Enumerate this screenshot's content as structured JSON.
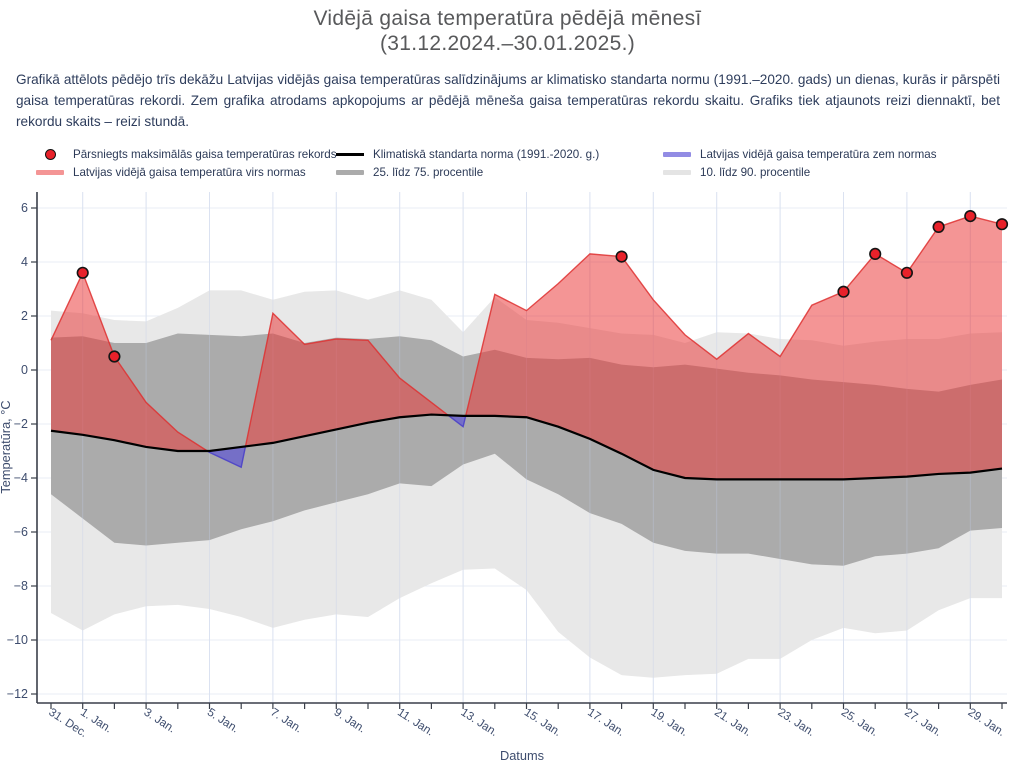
{
  "header": {
    "title_line1": "Vidējā gaisa temperatūra pēdējā mēnesī",
    "title_line2": "(31.12.2024.–30.01.2025.)",
    "description": "Grafikā attēlots pēdējo trīs dekāžu Latvijas vidējās gaisa temperatūras salīdzinājums ar klimatisko standarta normu (1991.–2020. gads) un dienas, kurās ir pārspēti gaisa temperatūras rekordi. Zem grafika atrodams apkopojums ar pēdējā mēneša gaisa temperatūras rekordu skaitu. Grafiks tiek atjaunots reizi diennaktī, bet rekordu skaits – reizi stundā."
  },
  "legend": {
    "items": [
      {
        "label": "Pārsniegts maksimālās gaisa temperatūras rekords",
        "swatch": "dot",
        "color": "#e8212a",
        "border": "#111111"
      },
      {
        "label": "Latvijas vidējā gaisa temperatūra virs normas",
        "swatch": "band",
        "color": "rgba(234,51,51,0.52)"
      },
      {
        "label": "Klimatiskā standarta norma (1991.-2020. g.)",
        "swatch": "line",
        "color": "#000000"
      },
      {
        "label": "25. līdz 75. procentile",
        "swatch": "band",
        "color": "#ababab"
      },
      {
        "label": "Latvijas vidējā gaisa temperatūra zem normas",
        "swatch": "band",
        "color": "rgba(88,78,214,0.65)"
      },
      {
        "label": "10. līdz 90. procentile",
        "swatch": "band",
        "color": "#e4e4e4"
      }
    ]
  },
  "chart_data": {
    "type": "area",
    "xlabel": "Datums",
    "ylabel": "Temperatūra, °C",
    "ylim": [
      -12.35,
      6.6
    ],
    "grid": true,
    "legend_position": "top",
    "categories": [
      "31. Dec.",
      "1. Jan.",
      "2. Jan.",
      "3. Jan.",
      "4. Jan.",
      "5. Jan.",
      "6. Jan.",
      "7. Jan.",
      "8. Jan.",
      "9. Jan.",
      "10. Jan.",
      "11. Jan.",
      "12. Jan.",
      "13. Jan.",
      "14. Jan.",
      "15. Jan.",
      "16. Jan.",
      "17. Jan.",
      "18. Jan.",
      "19. Jan.",
      "20. Jan.",
      "21. Jan.",
      "22. Jan.",
      "23. Jan.",
      "24. Jan.",
      "25. Jan.",
      "26. Jan.",
      "27. Jan.",
      "28. Jan.",
      "29. Jan.",
      "30. Jan."
    ],
    "series": [
      {
        "name": "Latvijas vidējā gaisa temperatūra",
        "values": [
          1.1,
          3.6,
          0.5,
          -1.2,
          -2.3,
          -3.05,
          -3.6,
          2.1,
          0.95,
          1.15,
          1.1,
          -0.3,
          -1.2,
          -2.1,
          2.8,
          2.2,
          3.2,
          4.3,
          4.2,
          2.6,
          1.3,
          0.4,
          1.35,
          0.5,
          2.4,
          2.9,
          4.3,
          3.6,
          5.3,
          5.7,
          5.4
        ]
      },
      {
        "name": "Klimatiskā standarta norma (1991.-2020. g.)",
        "values": [
          -2.25,
          -2.4,
          -2.6,
          -2.85,
          -3.0,
          -3.0,
          -2.85,
          -2.7,
          -2.45,
          -2.2,
          -1.95,
          -1.75,
          -1.65,
          -1.7,
          -1.7,
          -1.75,
          -2.1,
          -2.55,
          -3.1,
          -3.7,
          -4.0,
          -4.05,
          -4.05,
          -4.05,
          -4.05,
          -4.05,
          -4.0,
          -3.95,
          -3.85,
          -3.8,
          -3.65
        ]
      },
      {
        "name": "75. procentile",
        "values": [
          1.2,
          1.25,
          1.0,
          1.0,
          1.35,
          1.3,
          1.25,
          1.35,
          1.0,
          1.2,
          1.15,
          1.25,
          1.1,
          0.5,
          0.75,
          0.45,
          0.4,
          0.45,
          0.2,
          0.1,
          0.2,
          0.05,
          -0.1,
          -0.2,
          -0.35,
          -0.45,
          -0.55,
          -0.7,
          -0.8,
          -0.55,
          -0.35
        ]
      },
      {
        "name": "25. procentile",
        "values": [
          -4.6,
          -5.5,
          -6.4,
          -6.5,
          -6.4,
          -6.3,
          -5.9,
          -5.6,
          -5.2,
          -4.9,
          -4.6,
          -4.2,
          -4.3,
          -3.5,
          -3.1,
          -4.05,
          -4.6,
          -5.3,
          -5.7,
          -6.4,
          -6.7,
          -6.8,
          -6.8,
          -7.0,
          -7.2,
          -7.25,
          -6.9,
          -6.8,
          -6.6,
          -5.95,
          -5.85
        ]
      },
      {
        "name": "90. procentile",
        "values": [
          2.2,
          2.1,
          1.85,
          1.8,
          2.3,
          2.95,
          2.95,
          2.6,
          2.9,
          2.95,
          2.6,
          2.95,
          2.6,
          1.4,
          2.7,
          1.85,
          1.75,
          1.55,
          1.35,
          1.3,
          1.0,
          1.4,
          1.35,
          1.15,
          1.1,
          0.9,
          1.05,
          1.15,
          1.15,
          1.35,
          1.4
        ]
      },
      {
        "name": "10. procentile",
        "values": [
          -9.0,
          -9.65,
          -9.05,
          -8.75,
          -8.7,
          -8.85,
          -9.15,
          -9.55,
          -9.25,
          -9.05,
          -9.15,
          -8.45,
          -7.9,
          -7.4,
          -7.35,
          -8.15,
          -9.7,
          -10.65,
          -11.3,
          -11.4,
          -11.3,
          -11.25,
          -10.7,
          -10.7,
          -10.0,
          -9.55,
          -9.75,
          -9.65,
          -8.9,
          -8.45,
          -8.45
        ]
      }
    ],
    "records": [
      {
        "day": 1,
        "label": "1. Jan.",
        "value": 3.6
      },
      {
        "day": 2,
        "label": "2. Jan.",
        "value": 0.5
      },
      {
        "day": 18,
        "label": "18. Jan.",
        "value": 4.2
      },
      {
        "day": 25,
        "label": "25. Jan.",
        "value": 2.9
      },
      {
        "day": 26,
        "label": "26. Jan.",
        "value": 4.3
      },
      {
        "day": 27,
        "label": "27. Jan.",
        "value": 3.6
      },
      {
        "day": 28,
        "label": "28. Jan.",
        "value": 5.3
      },
      {
        "day": 29,
        "label": "29. Jan.",
        "value": 5.7
      },
      {
        "day": 30,
        "label": "30. Jan.",
        "value": 5.4
      }
    ],
    "x_ticks": [
      {
        "day": 0,
        "label": "31. Dec."
      },
      {
        "day": 1,
        "label": "1. Jan."
      },
      {
        "day": 3,
        "label": "3. Jan."
      },
      {
        "day": 5,
        "label": "5. Jan."
      },
      {
        "day": 7,
        "label": "7. Jan."
      },
      {
        "day": 9,
        "label": "9. Jan."
      },
      {
        "day": 11,
        "label": "11. Jan."
      },
      {
        "day": 13,
        "label": "13. Jan."
      },
      {
        "day": 15,
        "label": "15. Jan."
      },
      {
        "day": 17,
        "label": "17. Jan."
      },
      {
        "day": 19,
        "label": "19. Jan."
      },
      {
        "day": 21,
        "label": "21. Jan."
      },
      {
        "day": 23,
        "label": "23. Jan."
      },
      {
        "day": 25,
        "label": "25. Jan."
      },
      {
        "day": 27,
        "label": "27. Jan."
      },
      {
        "day": 29,
        "label": "29. Jan."
      }
    ],
    "y_ticks": [
      6,
      4,
      2,
      0,
      -2,
      -4,
      -6,
      -8,
      -10,
      -12
    ],
    "colors": {
      "above_norm_fill": "rgba(234,51,51,0.52)",
      "above_norm_stroke": "rgba(222,48,48,0.85)",
      "below_norm_fill": "rgba(88,78,214,0.65)",
      "below_norm_stroke": "rgba(75,65,200,0.9)",
      "norm_line": "#000000",
      "band_25_75": "#ababab",
      "band_10_90": "#e8e8e8",
      "record_dot": "#e8212a",
      "record_dot_border": "#141414",
      "grid": "#e9edf6",
      "axis": "#3a3f4a",
      "tick_text": "#3e4d6e"
    }
  }
}
